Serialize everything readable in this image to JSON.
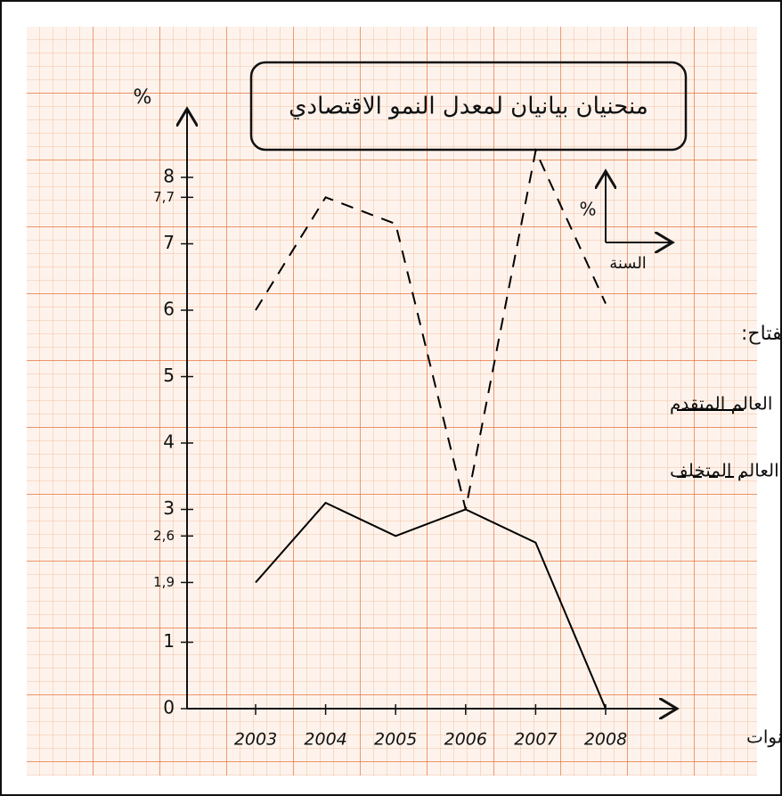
{
  "chart_data": {
    "type": "line",
    "title": "منحنيان بيانيان لمعدل النمو الاقتصادي",
    "y_label": "%",
    "x_label": "السنوات",
    "legend_title": "المفتاح:",
    "inset_y_label": "%",
    "inset_x_label": "السنة",
    "categories": [
      "2003",
      "2004",
      "2005",
      "2006",
      "2007",
      "2008"
    ],
    "series": [
      {
        "name": "العالم المتقدم",
        "color": "#000000",
        "line_style": "solid",
        "values": [
          1.9,
          3.1,
          2.6,
          3.0,
          2.5,
          0
        ]
      },
      {
        "name": "العالم المتخلف",
        "color": "#000000",
        "line_style": "dashed",
        "values": [
          6.0,
          7.7,
          7.3,
          3.0,
          8.4,
          6.1
        ]
      }
    ],
    "ylim": [
      0,
      8
    ],
    "yticks": [
      0,
      1,
      {
        "value": 1.9,
        "label": "1,9"
      },
      {
        "value": 2.6,
        "label": "2,6"
      },
      3,
      4,
      5,
      6,
      7,
      {
        "value": 7.7,
        "label": "7,7"
      },
      8
    ]
  }
}
